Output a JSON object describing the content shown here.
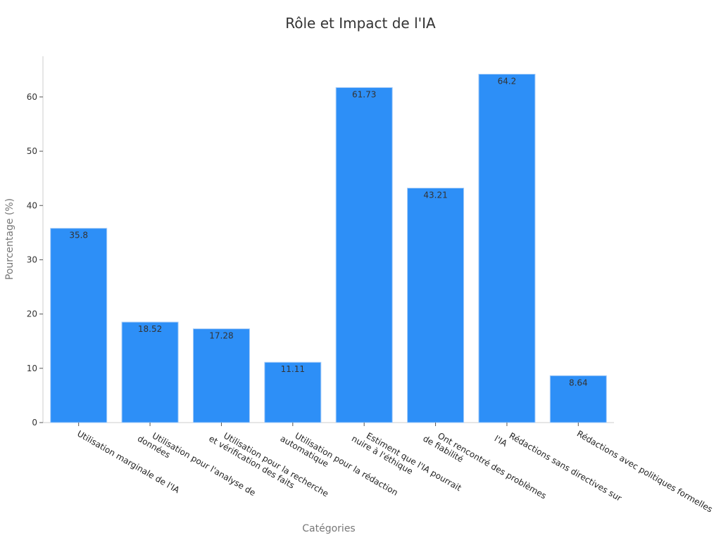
{
  "chart_data": {
    "type": "bar",
    "title": "Rôle et Impact de l'IA",
    "xlabel": "Catégories",
    "ylabel": "Pourcentage (%)",
    "ylim": [
      0,
      67.5
    ],
    "yticks": [
      0,
      10,
      20,
      30,
      40,
      50,
      60
    ],
    "categories": [
      [
        "Utilisation marginale de l'IA"
      ],
      [
        "Utilisation pour l'analyse de",
        "données"
      ],
      [
        "Utilisation pour la recherche",
        "et vérification des faits"
      ],
      [
        "Utilisation pour la rédaction",
        "automatique"
      ],
      [
        "Estiment que l'IA pourrait",
        "nuire à l'éthique"
      ],
      [
        "Ont rencontré des problèmes",
        "de fiabilité"
      ],
      [
        "Rédactions sans directives sur",
        "l'IA"
      ],
      [
        "Rédactions avec politiques formelles"
      ]
    ],
    "values": [
      35.8,
      18.52,
      17.28,
      11.11,
      61.73,
      43.21,
      64.2,
      8.64
    ],
    "value_labels": [
      "35.8",
      "18.52",
      "17.28",
      "11.11",
      "61.73",
      "43.21",
      "64.2",
      "8.64"
    ],
    "bar_color": "#2d8ff7",
    "bar_edge_color": "#a9cdf7",
    "grid": false,
    "legend": "none"
  }
}
